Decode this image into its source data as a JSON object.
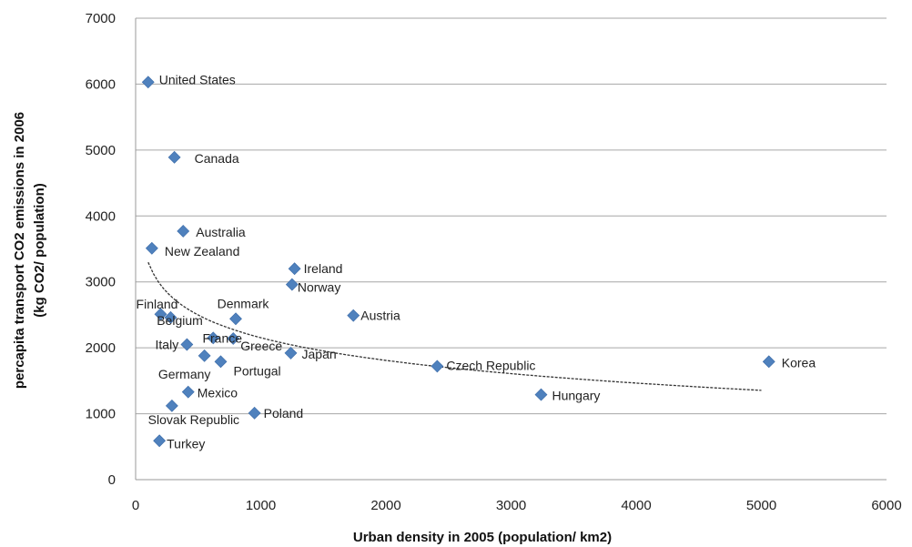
{
  "chart_data": {
    "type": "scatter",
    "title": "",
    "xlabel": "Urban density in 2005  (population/ km2)",
    "ylabel_line1": "percapita transport  CO2 emissions in 2006",
    "ylabel_line2": "(kg CO2/ population)",
    "xlim": [
      0,
      6000
    ],
    "ylim": [
      0,
      7000
    ],
    "xticks": [
      0,
      1000,
      2000,
      3000,
      4000,
      5000,
      6000
    ],
    "yticks": [
      0,
      1000,
      2000,
      3000,
      4000,
      5000,
      6000,
      7000
    ],
    "grid": "horizontal",
    "marker_color": "#4f81bd",
    "trendline": {
      "type": "logarithmic",
      "style": "dashed",
      "color": "#333333",
      "x_start": 100,
      "x_end": 5000
    },
    "points": [
      {
        "label": "United States",
        "x": 100,
        "y": 6030
      },
      {
        "label": "Canada",
        "x": 310,
        "y": 4890
      },
      {
        "label": "Australia",
        "x": 380,
        "y": 3770
      },
      {
        "label": "New Zealand",
        "x": 130,
        "y": 3510
      },
      {
        "label": "Ireland",
        "x": 1270,
        "y": 3200
      },
      {
        "label": "Norway",
        "x": 1250,
        "y": 2960
      },
      {
        "label": "Finland",
        "x": 200,
        "y": 2510
      },
      {
        "label": "Denmark",
        "x": 800,
        "y": 2440
      },
      {
        "label": "Austria",
        "x": 1740,
        "y": 2490
      },
      {
        "label": "Belgium",
        "x": 280,
        "y": 2460
      },
      {
        "label": "France",
        "x": 620,
        "y": 2150
      },
      {
        "label": "Italy",
        "x": 410,
        "y": 2050
      },
      {
        "label": "Greece",
        "x": 780,
        "y": 2140
      },
      {
        "label": "Japan",
        "x": 1240,
        "y": 1920
      },
      {
        "label": "Germany",
        "x": 550,
        "y": 1880
      },
      {
        "label": "Portugal",
        "x": 680,
        "y": 1790
      },
      {
        "label": "Czech Republic",
        "x": 2410,
        "y": 1720
      },
      {
        "label": "Korea",
        "x": 5060,
        "y": 1790
      },
      {
        "label": "Hungary",
        "x": 3240,
        "y": 1290
      },
      {
        "label": "Mexico",
        "x": 420,
        "y": 1330
      },
      {
        "label": "Slovak Republic",
        "x": 290,
        "y": 1120
      },
      {
        "label": "Poland",
        "x": 950,
        "y": 1010
      },
      {
        "label": "Turkey",
        "x": 190,
        "y": 590
      }
    ]
  }
}
